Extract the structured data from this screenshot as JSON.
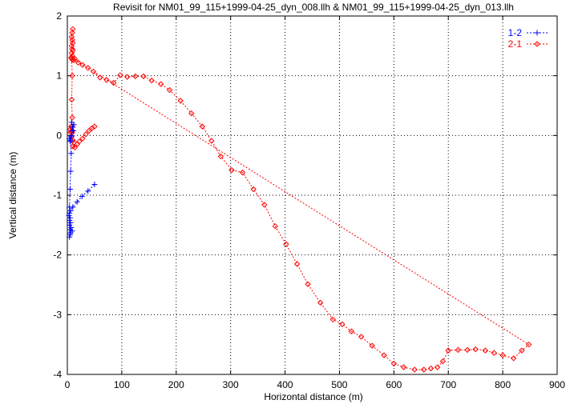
{
  "chart_data": {
    "type": "line",
    "title": "Revisit for NM01_99_115+1999-04-25_dyn_008.llh & NM01_99_115+1999-04-25_dyn_013.llh",
    "xlabel": "Horizontal distance (m)",
    "ylabel": "Vertical distance (m)",
    "xlim": [
      0,
      900
    ],
    "ylim": [
      -4,
      2
    ],
    "xticks": [
      "0",
      "100",
      "200",
      "300",
      "400",
      "500",
      "600",
      "700",
      "800",
      "900"
    ],
    "yticks": [
      "-4",
      "-3",
      "-2",
      "-1",
      "0",
      "1",
      "2"
    ],
    "grid": true,
    "legend_position": "top-right",
    "series": [
      {
        "name": "1-2",
        "color": "#0000ff",
        "marker": "plus",
        "points": [
          [
            50,
            -0.82
          ],
          [
            38,
            -0.93
          ],
          [
            27,
            -1.02
          ],
          [
            18,
            -1.11
          ],
          [
            10,
            -1.2
          ],
          [
            6,
            -1.26
          ],
          [
            4,
            -1.3
          ],
          [
            3,
            -1.34
          ],
          [
            5,
            -1.38
          ],
          [
            4,
            -1.42
          ],
          [
            6,
            -1.46
          ],
          [
            4,
            -1.5
          ],
          [
            7,
            -1.54
          ],
          [
            5,
            -1.58
          ],
          [
            9,
            -1.6
          ],
          [
            6,
            -1.63
          ],
          [
            5,
            -1.66
          ],
          [
            4,
            -1.7
          ],
          [
            4,
            -1.2
          ],
          [
            5,
            -0.9
          ],
          [
            6,
            -0.6
          ],
          [
            7,
            -0.3
          ],
          [
            6,
            -0.08
          ],
          [
            7,
            -0.02
          ],
          [
            5,
            -0.1
          ],
          [
            4,
            -0.05
          ],
          [
            8,
            0.0
          ],
          [
            9,
            0.08
          ],
          [
            10,
            0.14
          ],
          [
            12,
            0.18
          ],
          [
            8,
            0.22
          ],
          [
            11,
            0.08
          ]
        ]
      },
      {
        "name": "2-1",
        "color": "#ff0000",
        "marker": "diamond",
        "points": [
          [
            10,
            1.78
          ],
          [
            9,
            1.72
          ],
          [
            8,
            1.65
          ],
          [
            9,
            1.6
          ],
          [
            10,
            1.55
          ],
          [
            8,
            1.5
          ],
          [
            9,
            1.45
          ],
          [
            10,
            1.42
          ],
          [
            8,
            1.38
          ],
          [
            9,
            1.33
          ],
          [
            7,
            1.3
          ],
          [
            9,
            1.27
          ],
          [
            12,
            1.26
          ],
          [
            14,
            1.28
          ],
          [
            20,
            1.22
          ],
          [
            28,
            1.18
          ],
          [
            38,
            1.13
          ],
          [
            48,
            1.07
          ],
          [
            60,
            0.97
          ],
          [
            72,
            0.93
          ],
          [
            85,
            0.88
          ],
          [
            97,
            1.01
          ],
          [
            110,
            0.98
          ],
          [
            125,
            0.99
          ],
          [
            140,
            0.99
          ],
          [
            155,
            0.92
          ],
          [
            172,
            0.86
          ],
          [
            188,
            0.76
          ],
          [
            208,
            0.58
          ],
          [
            228,
            0.37
          ],
          [
            248,
            0.15
          ],
          [
            265,
            -0.09
          ],
          [
            282,
            -0.35
          ],
          [
            302,
            -0.58
          ],
          [
            322,
            -0.62
          ],
          [
            342,
            -0.9
          ],
          [
            362,
            -1.16
          ],
          [
            382,
            -1.52
          ],
          [
            402,
            -1.82
          ],
          [
            422,
            -2.15
          ],
          [
            442,
            -2.49
          ],
          [
            465,
            -2.8
          ],
          [
            488,
            -3.08
          ],
          [
            505,
            -3.16
          ],
          [
            522,
            -3.28
          ],
          [
            540,
            -3.37
          ],
          [
            560,
            -3.52
          ],
          [
            582,
            -3.68
          ],
          [
            600,
            -3.82
          ],
          [
            618,
            -3.88
          ],
          [
            638,
            -3.92
          ],
          [
            655,
            -3.92
          ],
          [
            668,
            -3.9
          ],
          [
            680,
            -3.88
          ],
          [
            690,
            -3.78
          ],
          [
            700,
            -3.6
          ],
          [
            718,
            -3.59
          ],
          [
            735,
            -3.59
          ],
          [
            750,
            -3.58
          ],
          [
            768,
            -3.6
          ],
          [
            784,
            -3.64
          ],
          [
            800,
            -3.68
          ],
          [
            820,
            -3.73
          ],
          [
            835,
            -3.6
          ],
          [
            848,
            -3.5
          ],
          [
            8,
            1.3
          ],
          [
            9,
            1.0
          ],
          [
            8,
            0.6
          ],
          [
            9,
            0.3
          ],
          [
            8,
            0.15
          ],
          [
            9,
            0.08
          ],
          [
            6,
            0.05
          ],
          [
            5,
            0.1
          ],
          [
            7,
            0.15
          ],
          [
            9,
            0.05
          ],
          [
            8,
            -0.02
          ],
          [
            10,
            -0.08
          ],
          [
            12,
            -0.12
          ],
          [
            10,
            -0.18
          ],
          [
            14,
            -0.2
          ],
          [
            18,
            -0.15
          ],
          [
            22,
            -0.1
          ],
          [
            28,
            -0.05
          ],
          [
            34,
            0.02
          ],
          [
            40,
            0.08
          ],
          [
            45,
            0.12
          ],
          [
            50,
            0.15
          ]
        ]
      }
    ]
  }
}
